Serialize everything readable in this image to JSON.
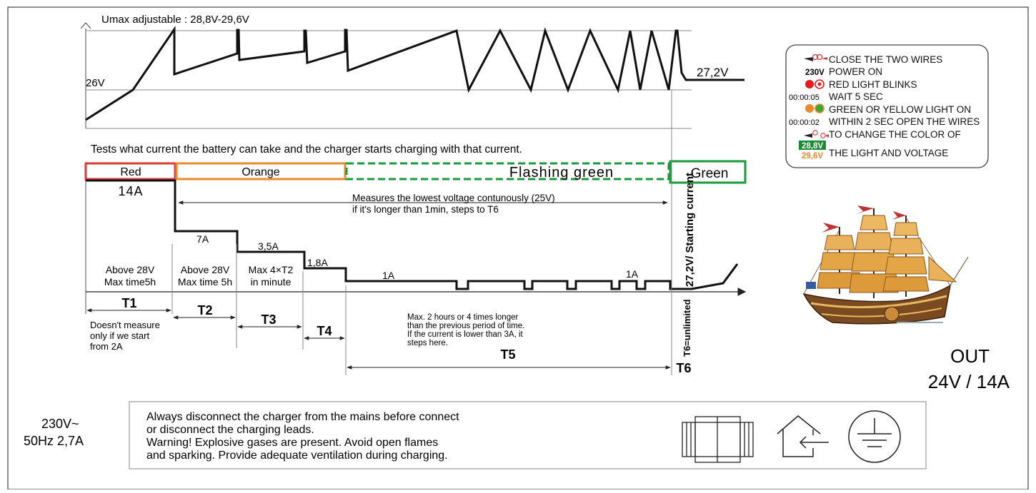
{
  "header": {
    "umax_label": "Umax adjustable : 28,8V-29,6V",
    "v26_label": "26V",
    "v272_right_label": "27,2V",
    "tests_text": "Tests what current the battery can take and the charger starts charging with that current."
  },
  "phases": [
    {
      "label": "Red",
      "color": "#d83a3a"
    },
    {
      "label": "Orange",
      "color": "#ea8a2c"
    },
    {
      "label": "Flashing green",
      "color": "#1a9a3a"
    },
    {
      "label": "Green",
      "color": "#1a9a3a"
    }
  ],
  "currents": {
    "c14": "14A",
    "c7": "7A",
    "c35": "3,5A",
    "c18": "1,8A",
    "c1a": "1A",
    "c1b": "1A"
  },
  "measures_text": {
    "line1": "Measures the lowest voltage contunously (25V)",
    "line2": "if it's longer than 1min, steps to T6"
  },
  "conditions": {
    "t1_line1": "Above 28V",
    "t1_line2": "Max time5h",
    "t2_line1": "Above 28V",
    "t2_line2": "Max time 5h",
    "t3_line1": "Max 4×T2",
    "t3_line2": "in minute"
  },
  "time_labels": {
    "t1": "T1",
    "t2": "T2",
    "t3": "T3",
    "t4": "T4",
    "t5": "T5",
    "t6": "T6"
  },
  "notes": {
    "t1_line1": "Doesn't measure",
    "t1_line2": "only if we start",
    "t1_line3": "from 2A",
    "t5_line1": "Max. 2 hours or 4 times longer",
    "t5_line2": "than the previous period of time.",
    "t5_line3": "If the current is lower than 3A, it",
    "t5_line4": "steps here."
  },
  "vertical_labels": {
    "starting_current": "27,2V/ Starting current",
    "t6_unlimited": "T6=unlimited"
  },
  "instructions": {
    "line1": "CLOSE THE TWO WIRES",
    "v230": "230V",
    "line2": "POWER ON",
    "line3": "RED LIGHT BLINKS",
    "timer5": "00:00:05",
    "line4": "WAIT 5 SEC",
    "line5": "GREEN OR YELLOW LIGHT ON",
    "timer2": "00:00:02",
    "line6": "WITHIN 2 SEC OPEN THE WIRES",
    "line7": "TO CHANGE THE COLOR OF",
    "v288": "28,8V",
    "v296": "29,6V",
    "line8": "THE LIGHT AND VOLTAGE"
  },
  "output": {
    "line1": "OUT",
    "line2": "24V / 14A"
  },
  "input": {
    "line1": "230V~",
    "line2": "50Hz  2,7A"
  },
  "warning": {
    "line1": "Always disconnect the charger from the mains before connect",
    "line2": "or disconnect the charging leads.",
    "line3": "Warning! Explosive gases are present. Avoid open flames",
    "line4": "and sparking. Provide adequate ventilation during charging."
  },
  "icons": [
    "double-insulation-icon",
    "indoor-use-icon",
    "protective-earth-icon",
    "ship-image",
    "wire-connect-icon",
    "led-red-icon",
    "led-green-orange-icon"
  ]
}
